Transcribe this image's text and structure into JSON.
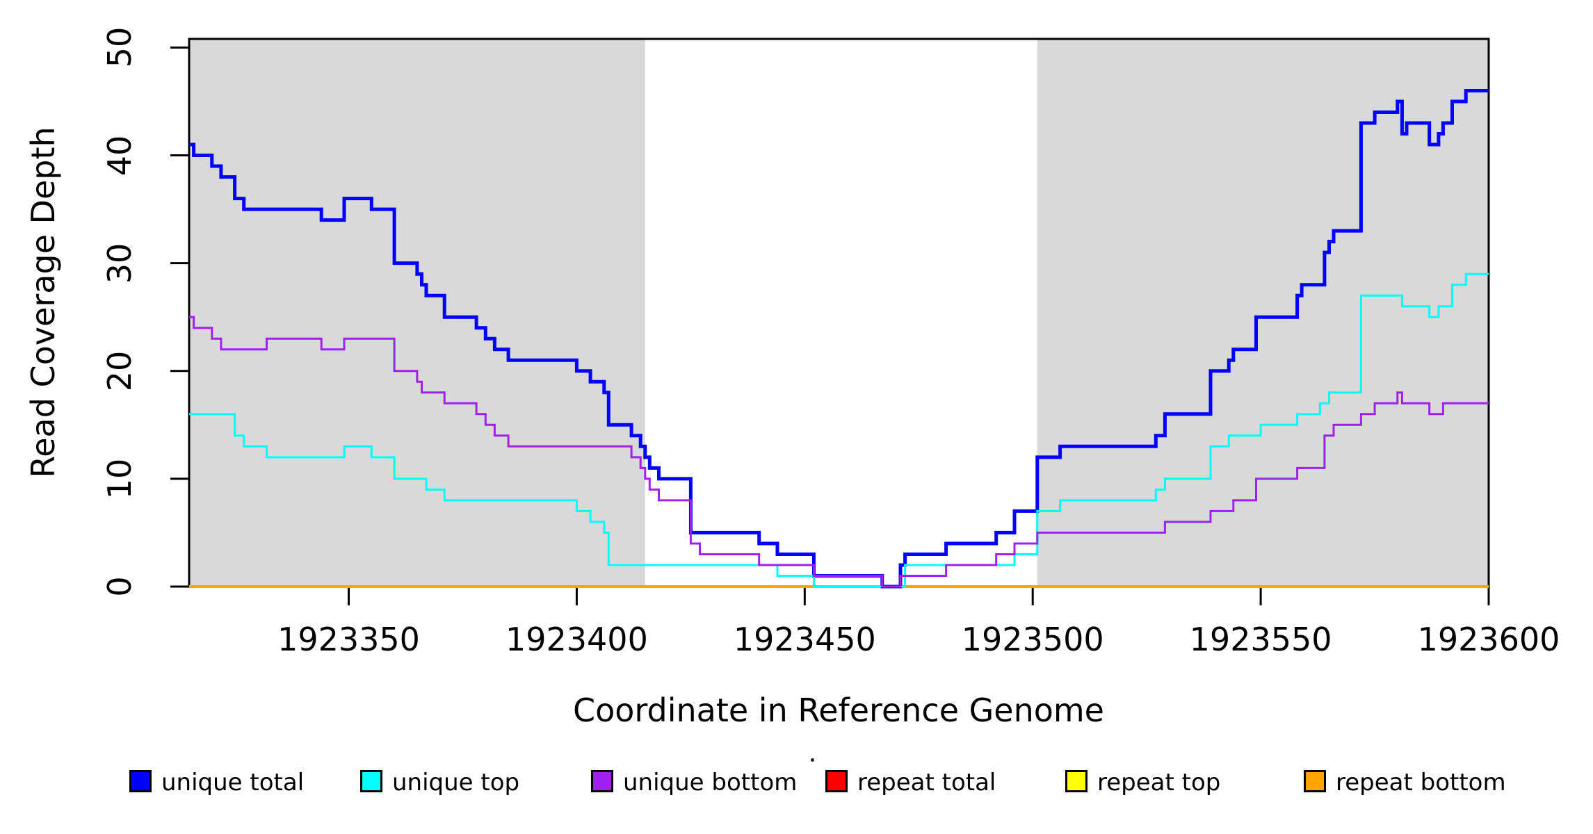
{
  "chart_data": {
    "type": "line",
    "subtype": "step",
    "title": "",
    "xlabel": "Coordinate in Reference Genome",
    "ylabel": "Read Coverage Depth",
    "x_range": [
      1923315,
      1923600
    ],
    "y_range": [
      0,
      50.8
    ],
    "x_ticks": [
      1923350,
      1923400,
      1923450,
      1923500,
      1923550,
      1923600
    ],
    "y_ticks": [
      0,
      10,
      20,
      30,
      40,
      50
    ],
    "grid": false,
    "legend_position": "bottom",
    "shaded_regions": {
      "color": "#d9d9d9",
      "x_pairs": [
        [
          1923315,
          1923415
        ],
        [
          1923501,
          1923600
        ]
      ]
    },
    "series": [
      {
        "name": "unique total",
        "color": "#0000ff",
        "width": 5,
        "breakpoints": [
          [
            1923315,
            41
          ],
          [
            1923316,
            40
          ],
          [
            1923320,
            39
          ],
          [
            1923322,
            38
          ],
          [
            1923325,
            36
          ],
          [
            1923327,
            35
          ],
          [
            1923344,
            34
          ],
          [
            1923349,
            36
          ],
          [
            1923355,
            35
          ],
          [
            1923360,
            30
          ],
          [
            1923365,
            29
          ],
          [
            1923366,
            28
          ],
          [
            1923367,
            27
          ],
          [
            1923371,
            25
          ],
          [
            1923378,
            24
          ],
          [
            1923380,
            23
          ],
          [
            1923382,
            22
          ],
          [
            1923385,
            21
          ],
          [
            1923400,
            20
          ],
          [
            1923403,
            19
          ],
          [
            1923406,
            18
          ],
          [
            1923407,
            15
          ],
          [
            1923412,
            14
          ],
          [
            1923414,
            13
          ],
          [
            1923415,
            12
          ],
          [
            1923416,
            11
          ],
          [
            1923418,
            10
          ],
          [
            1923425,
            5
          ],
          [
            1923440,
            4
          ],
          [
            1923444,
            3
          ],
          [
            1923452,
            1
          ],
          [
            1923467,
            0
          ],
          [
            1923471,
            2
          ],
          [
            1923472,
            3
          ],
          [
            1923481,
            4
          ],
          [
            1923492,
            5
          ],
          [
            1923496,
            7
          ],
          [
            1923501,
            12
          ],
          [
            1923506,
            13
          ],
          [
            1923527,
            14
          ],
          [
            1923529,
            16
          ],
          [
            1923539,
            20
          ],
          [
            1923543,
            21
          ],
          [
            1923544,
            22
          ],
          [
            1923549,
            25
          ],
          [
            1923558,
            27
          ],
          [
            1923559,
            28
          ],
          [
            1923564,
            31
          ],
          [
            1923565,
            32
          ],
          [
            1923566,
            33
          ],
          [
            1923572,
            43
          ],
          [
            1923575,
            44
          ],
          [
            1923580,
            45
          ],
          [
            1923581,
            42
          ],
          [
            1923582,
            43
          ],
          [
            1923587,
            41
          ],
          [
            1923589,
            42
          ],
          [
            1923590,
            43
          ],
          [
            1923592,
            45
          ],
          [
            1923595,
            46
          ]
        ]
      },
      {
        "name": "unique top",
        "color": "#00ffff",
        "width": 3,
        "breakpoints": [
          [
            1923315,
            16
          ],
          [
            1923325,
            14
          ],
          [
            1923327,
            13
          ],
          [
            1923332,
            12
          ],
          [
            1923349,
            13
          ],
          [
            1923355,
            12
          ],
          [
            1923360,
            10
          ],
          [
            1923367,
            9
          ],
          [
            1923371,
            8
          ],
          [
            1923400,
            7
          ],
          [
            1923403,
            6
          ],
          [
            1923406,
            5
          ],
          [
            1923407,
            2
          ],
          [
            1923444,
            1
          ],
          [
            1923452,
            0
          ],
          [
            1923472,
            2
          ],
          [
            1923496,
            3
          ],
          [
            1923501,
            7
          ],
          [
            1923506,
            8
          ],
          [
            1923527,
            9
          ],
          [
            1923529,
            10
          ],
          [
            1923539,
            13
          ],
          [
            1923543,
            14
          ],
          [
            1923550,
            15
          ],
          [
            1923558,
            16
          ],
          [
            1923563,
            17
          ],
          [
            1923565,
            18
          ],
          [
            1923572,
            27
          ],
          [
            1923581,
            26
          ],
          [
            1923587,
            25
          ],
          [
            1923589,
            26
          ],
          [
            1923592,
            28
          ],
          [
            1923595,
            29
          ]
        ]
      },
      {
        "name": "unique bottom",
        "color": "#a020f0",
        "width": 3,
        "breakpoints": [
          [
            1923315,
            25
          ],
          [
            1923316,
            24
          ],
          [
            1923320,
            23
          ],
          [
            1923322,
            22
          ],
          [
            1923332,
            23
          ],
          [
            1923344,
            22
          ],
          [
            1923349,
            23
          ],
          [
            1923360,
            20
          ],
          [
            1923365,
            19
          ],
          [
            1923366,
            18
          ],
          [
            1923371,
            17
          ],
          [
            1923378,
            16
          ],
          [
            1923380,
            15
          ],
          [
            1923382,
            14
          ],
          [
            1923385,
            13
          ],
          [
            1923412,
            12
          ],
          [
            1923414,
            11
          ],
          [
            1923415,
            10
          ],
          [
            1923416,
            9
          ],
          [
            1923418,
            8
          ],
          [
            1923425,
            4
          ],
          [
            1923427,
            3
          ],
          [
            1923440,
            2
          ],
          [
            1923452,
            1
          ],
          [
            1923467,
            0
          ],
          [
            1923471,
            1
          ],
          [
            1923481,
            2
          ],
          [
            1923492,
            3
          ],
          [
            1923496,
            4
          ],
          [
            1923501,
            5
          ],
          [
            1923529,
            6
          ],
          [
            1923539,
            7
          ],
          [
            1923544,
            8
          ],
          [
            1923549,
            10
          ],
          [
            1923558,
            11
          ],
          [
            1923564,
            14
          ],
          [
            1923566,
            15
          ],
          [
            1923572,
            16
          ],
          [
            1923575,
            17
          ],
          [
            1923580,
            18
          ],
          [
            1923581,
            17
          ],
          [
            1923587,
            16
          ],
          [
            1923590,
            17
          ]
        ]
      },
      {
        "name": "repeat total",
        "color": "#ff0000",
        "width": 3,
        "breakpoints": [
          [
            1923315,
            0
          ]
        ]
      },
      {
        "name": "repeat top",
        "color": "#ffff00",
        "width": 3,
        "breakpoints": [
          [
            1923315,
            0
          ]
        ]
      },
      {
        "name": "repeat bottom",
        "color": "#ffa500",
        "width": 4,
        "breakpoints": [
          [
            1923315,
            0
          ]
        ]
      }
    ],
    "draw_order": [
      "repeat total",
      "repeat top",
      "repeat bottom",
      "unique total",
      "unique top",
      "unique bottom"
    ]
  },
  "legend": {
    "items": [
      {
        "label": "unique total",
        "color": "#0000ff"
      },
      {
        "label": "unique top",
        "color": "#00ffff"
      },
      {
        "label": "unique bottom",
        "color": "#a020f0"
      },
      {
        "label": "repeat total",
        "color": "#ff0000"
      },
      {
        "label": "repeat top",
        "color": "#ffff00"
      },
      {
        "label": "repeat bottom",
        "color": "#ffa500"
      }
    ]
  }
}
